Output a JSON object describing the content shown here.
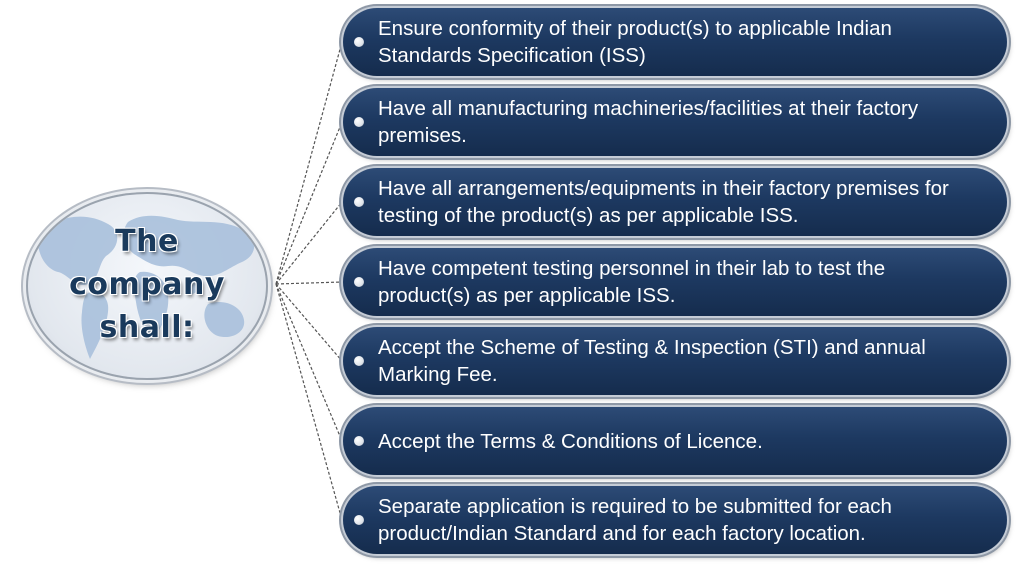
{
  "hub": {
    "title": "The\ncompany\nshall:",
    "background": "world-map"
  },
  "colors": {
    "box_fill": "#1d3961",
    "box_text": "#ffffff",
    "hub_text": "#1a3a5c",
    "map": "#a9c0dc",
    "connector": "#555555"
  },
  "items": [
    {
      "text": "Ensure conformity of their product(s) to applicable Indian Standards Specification (ISS)"
    },
    {
      "text": "Have all manufacturing machineries/facilities at their factory premises."
    },
    {
      "text": "Have all arrangements/equipments in their factory premises for testing of the product(s) as per applicable ISS."
    },
    {
      "text": "Have competent testing personnel in their lab to test the product(s) as per applicable ISS."
    },
    {
      "text": "Accept the Scheme of Testing & Inspection (STI) and annual Marking Fee."
    },
    {
      "text": "Accept the Terms & Conditions of Licence."
    },
    {
      "text": "Separate application is required to be submitted for each product/Indian Standard and for each factory location."
    }
  ]
}
